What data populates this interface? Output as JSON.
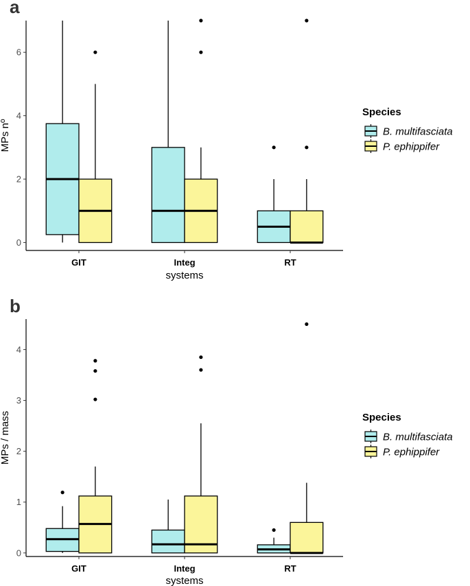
{
  "colors": {
    "B. multifasciata": "#b0ecec",
    "P. ephippifer": "#fbf59a",
    "outline": "#000000"
  },
  "legend": {
    "title": "Species",
    "entries": [
      "B. multifasciata",
      "P. ephippifer"
    ]
  },
  "chart_data": [
    {
      "type": "boxplot",
      "panel_label": "a",
      "xlabel": "systems",
      "ylabel": "MPs nº",
      "categories": [
        "GIT",
        "Integ",
        "RT"
      ],
      "y_ticks": [
        0,
        2,
        4,
        6
      ],
      "ylim": [
        -0.25,
        7.0
      ],
      "grid": false,
      "legend_position": "right",
      "series": [
        {
          "name": "B. multifasciata",
          "boxes": [
            {
              "low": 0,
              "q1": 0.25,
              "median": 2,
              "q3": 3.75,
              "high": 7,
              "outliers": []
            },
            {
              "low": 0,
              "q1": 0,
              "median": 1,
              "q3": 3,
              "high": 7,
              "outliers": []
            },
            {
              "low": 0,
              "q1": 0,
              "median": 0.5,
              "q3": 1,
              "high": 2,
              "outliers": [
                3
              ]
            }
          ]
        },
        {
          "name": "P. ephippifer",
          "boxes": [
            {
              "low": 0,
              "q1": 0,
              "median": 1,
              "q3": 2,
              "high": 5,
              "outliers": [
                6
              ]
            },
            {
              "low": 0,
              "q1": 0,
              "median": 1,
              "q3": 2,
              "high": 3,
              "outliers": [
                6,
                7
              ]
            },
            {
              "low": 0,
              "q1": 0,
              "median": 0,
              "q3": 1,
              "high": 2,
              "outliers": [
                3,
                7
              ]
            }
          ]
        }
      ]
    },
    {
      "type": "boxplot",
      "panel_label": "b",
      "xlabel": "systems",
      "ylabel": "MPs / mass",
      "categories": [
        "GIT",
        "Integ",
        "RT"
      ],
      "y_ticks": [
        0,
        1,
        2,
        3,
        4
      ],
      "ylim": [
        -0.07,
        4.6
      ],
      "grid": false,
      "legend_position": "right",
      "series": [
        {
          "name": "B. multifasciata",
          "boxes": [
            {
              "low": 0,
              "q1": 0.03,
              "median": 0.27,
              "q3": 0.48,
              "high": 0.92,
              "outliers": [
                1.19
              ]
            },
            {
              "low": 0,
              "q1": 0,
              "median": 0.17,
              "q3": 0.45,
              "high": 1.05,
              "outliers": []
            },
            {
              "low": 0,
              "q1": 0,
              "median": 0.07,
              "q3": 0.16,
              "high": 0.3,
              "outliers": [
                0.45
              ]
            }
          ]
        },
        {
          "name": "P. ephippifer",
          "boxes": [
            {
              "low": 0,
              "q1": 0,
              "median": 0.57,
              "q3": 1.12,
              "high": 1.7,
              "outliers": [
                3.02,
                3.58,
                3.78
              ]
            },
            {
              "low": 0,
              "q1": 0,
              "median": 0.17,
              "q3": 1.12,
              "high": 2.55,
              "outliers": [
                3.6,
                3.85
              ]
            },
            {
              "low": 0,
              "q1": 0,
              "median": 0,
              "q3": 0.6,
              "high": 1.38,
              "outliers": [
                4.5
              ]
            }
          ]
        }
      ]
    }
  ]
}
